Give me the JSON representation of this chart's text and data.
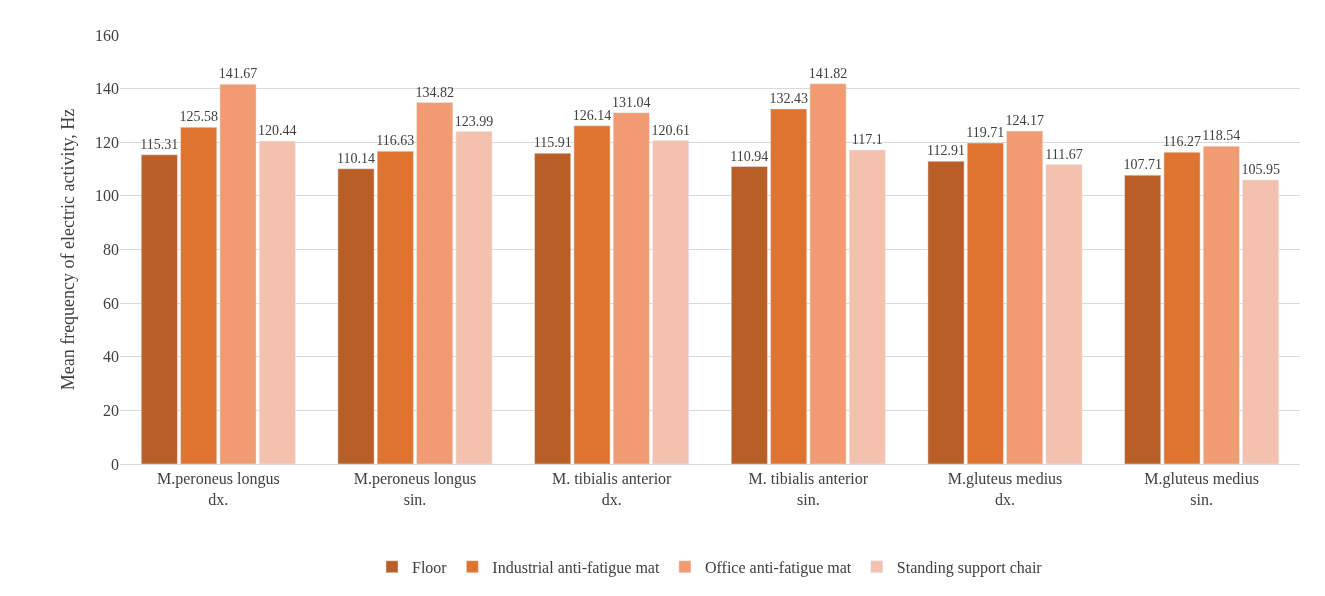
{
  "chart_data": {
    "type": "bar",
    "ylabel": "Mean frequency of electric activity, Hz",
    "categories": [
      "M.peroneus longus dx.",
      "M.peroneus longus sin.",
      "M. tibialis anterior dx.",
      "M. tibialis anterior sin.",
      "M.gluteus medius dx.",
      "M.gluteus medius sin."
    ],
    "series": [
      {
        "name": "Floor",
        "color": "#b95e26",
        "values": [
          115.31,
          110.14,
          115.91,
          110.94,
          112.91,
          107.71
        ]
      },
      {
        "name": "Industrial anti-fatigue mat",
        "color": "#df7431",
        "values": [
          125.58,
          116.63,
          126.14,
          132.43,
          119.71,
          116.27
        ]
      },
      {
        "name": "Office anti-fatigue mat",
        "color": "#f09b72",
        "values": [
          141.67,
          134.82,
          131.04,
          141.82,
          124.17,
          118.54
        ]
      },
      {
        "name": "Standing support chair",
        "color": "#f5c1af",
        "values": [
          120.44,
          123.99,
          120.61,
          117.1,
          111.67,
          105.95
        ]
      }
    ],
    "ylim": [
      0,
      160
    ],
    "yticks": [
      0,
      20,
      40,
      60,
      80,
      100,
      120,
      140,
      160
    ],
    "grid": "y",
    "legend": "bottom",
    "data_labels": true
  }
}
